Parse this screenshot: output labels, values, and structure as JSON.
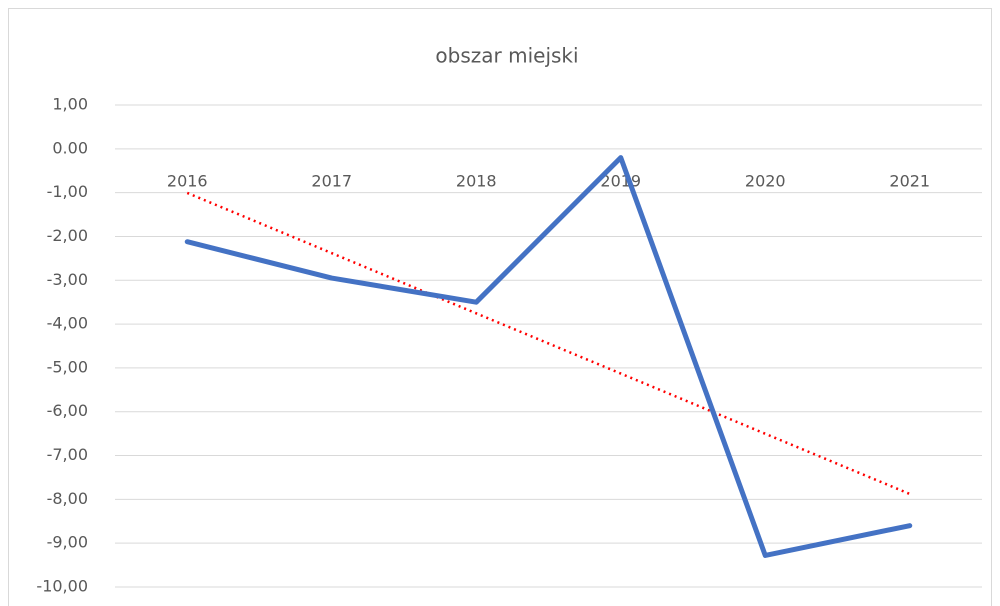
{
  "chart_data": {
    "type": "line",
    "title": "obszar miejski",
    "categories": [
      "2016",
      "2017",
      "2018",
      "2019",
      "2020",
      "2021"
    ],
    "series": [
      {
        "name": "obszar miejski",
        "color": "#4472c4",
        "values": [
          -2.12,
          -2.95,
          -3.5,
          -0.2,
          -9.28,
          -8.6
        ]
      }
    ],
    "trendline": {
      "type": "linear",
      "color": "#ff0000"
    },
    "ylim": [
      -10,
      1
    ],
    "yticks": [
      {
        "value": 1,
        "label": "1,00"
      },
      {
        "value": 0,
        "label": "0.00"
      },
      {
        "value": -1,
        "label": "-1,00"
      },
      {
        "value": -2,
        "label": "-2,00"
      },
      {
        "value": -3,
        "label": "-3,00"
      },
      {
        "value": -4,
        "label": "-4,00"
      },
      {
        "value": -5,
        "label": "-5,00"
      },
      {
        "value": -6,
        "label": "-6,00"
      },
      {
        "value": -7,
        "label": "-7,00"
      },
      {
        "value": -8,
        "label": "-8,00"
      },
      {
        "value": -9,
        "label": "-9,00"
      },
      {
        "value": -10,
        "label": "-10,00"
      }
    ],
    "grid": true
  }
}
